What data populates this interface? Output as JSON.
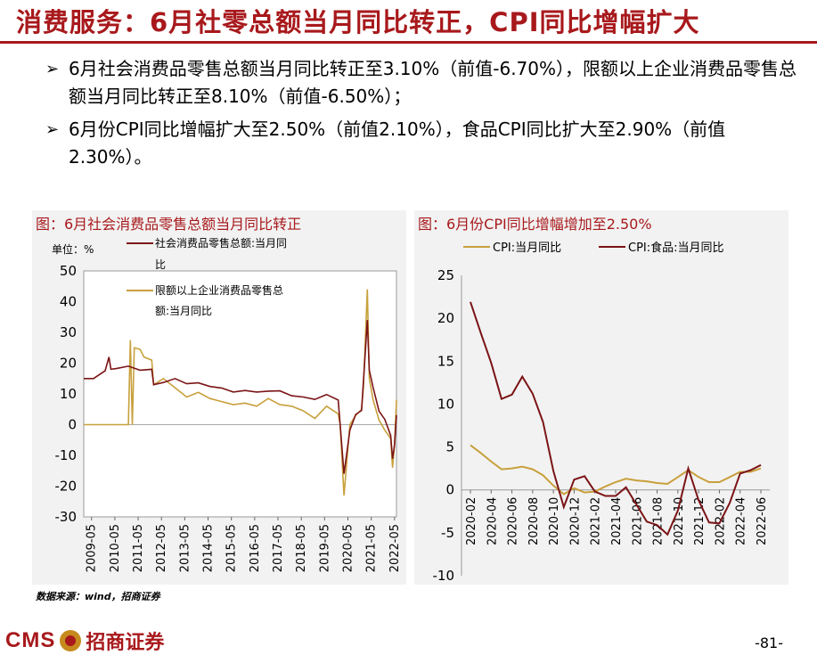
{
  "header": {
    "title": "消费服务：6月社零总额当月同比转正，CPI同比增幅扩大"
  },
  "bullets": [
    "6月社会消费品零售总额当月同比转正至3.10%（前值-6.70%），限额以上企业消费品零售总额当月同比转正至8.10%（前值-6.50%）；",
    "6月份CPI同比增幅扩大至2.50%（前值2.10%），食品CPI同比扩大至2.90%（前值2.30%）。"
  ],
  "footer": {
    "source": "数据来源：wind，招商证券",
    "logo_text": "CMS",
    "logo_cn": "招商证券",
    "page": "-81-"
  },
  "colors": {
    "brand_red": "#a8191c",
    "series_dark": "#7b1416",
    "series_gold": "#c8a03c"
  },
  "chart_data": [
    {
      "type": "line",
      "title": "图：6月社会消费品零售总额当月同比转正",
      "unit_label": "单位：%",
      "ylim": [
        -30,
        50
      ],
      "yticks": [
        50,
        40,
        30,
        20,
        10,
        0,
        -10,
        -20,
        -30
      ],
      "x_range": [
        "2009-01",
        "2022-06"
      ],
      "xtick_labels": [
        "2009-05",
        "2010-05",
        "2011-05",
        "2012-05",
        "2013-05",
        "2014-05",
        "2015-05",
        "2016-05",
        "2017-05",
        "2018-05",
        "2019-05",
        "2020-05",
        "2021-05",
        "2022-05"
      ],
      "legend": "top-left",
      "series": [
        {
          "name": "社会消费品零售总额:当月同比",
          "color": "#7b1416",
          "x": [
            "2009-01",
            "2009-06",
            "2009-12",
            "2010-02",
            "2010-03",
            "2010-06",
            "2010-12",
            "2011-06",
            "2011-12",
            "2012-01",
            "2012-06",
            "2012-12",
            "2013-06",
            "2013-12",
            "2014-06",
            "2014-12",
            "2015-06",
            "2015-12",
            "2016-06",
            "2016-12",
            "2017-06",
            "2017-12",
            "2018-06",
            "2018-12",
            "2019-06",
            "2019-12",
            "2020-01",
            "2020-03",
            "2020-06",
            "2020-09",
            "2020-12",
            "2021-01",
            "2021-03",
            "2021-04",
            "2021-06",
            "2021-09",
            "2021-12",
            "2022-03",
            "2022-04",
            "2022-05",
            "2022-06"
          ],
          "y": [
            15,
            15,
            17.5,
            22,
            18,
            18.3,
            19,
            17.7,
            18,
            13,
            13.7,
            15,
            13.3,
            13.6,
            12.4,
            11.9,
            10.6,
            11.1,
            10.6,
            10.9,
            11,
            9.4,
            9,
            8.2,
            9.8,
            8,
            0,
            -16,
            -1.8,
            3.3,
            4.6,
            14,
            34,
            17.7,
            12.1,
            4.4,
            1.7,
            -3.5,
            -11.1,
            -6.7,
            3.1
          ]
        },
        {
          "name": "限额以上企业消费品零售总额:当月同比",
          "color": "#c8a03c",
          "x": [
            "2009-01",
            "2010-12",
            "2011-01",
            "2011-02",
            "2011-03",
            "2011-06",
            "2011-08",
            "2011-12",
            "2012-01",
            "2012-06",
            "2012-12",
            "2013-06",
            "2013-12",
            "2014-06",
            "2014-12",
            "2015-06",
            "2015-12",
            "2016-06",
            "2016-12",
            "2017-06",
            "2017-12",
            "2018-06",
            "2018-12",
            "2019-06",
            "2019-12",
            "2020-01",
            "2020-03",
            "2020-06",
            "2020-09",
            "2020-12",
            "2021-01",
            "2021-03",
            "2021-04",
            "2021-06",
            "2021-09",
            "2021-12",
            "2022-03",
            "2022-04",
            "2022-05",
            "2022-06"
          ],
          "y": [
            0,
            0,
            27.5,
            0,
            25,
            24.5,
            22,
            21,
            13,
            15,
            12,
            9,
            10.5,
            8.5,
            7.5,
            6.5,
            7,
            6,
            8.5,
            6.5,
            6,
            4.5,
            2,
            6,
            3.5,
            0,
            -23,
            0,
            3,
            5,
            12,
            44,
            15,
            8,
            1.5,
            -1.8,
            -4.5,
            -14,
            -6.5,
            8.1
          ]
        }
      ]
    },
    {
      "type": "line",
      "title": "图：6月份CPI同比增幅增加至2.50%",
      "ylim": [
        -10,
        25
      ],
      "yticks": [
        25,
        20,
        15,
        10,
        5,
        0,
        -5,
        -10
      ],
      "xtick_labels": [
        "2020-02",
        "2020-04",
        "2020-06",
        "2020-08",
        "2020-10",
        "2020-12",
        "2021-02",
        "2021-04",
        "2021-06",
        "2021-08",
        "2021-10",
        "2021-12",
        "2022-02",
        "2022-04",
        "2022-06"
      ],
      "legend": "top",
      "categories": [
        "2020-02",
        "2020-03",
        "2020-04",
        "2020-05",
        "2020-06",
        "2020-07",
        "2020-08",
        "2020-09",
        "2020-10",
        "2020-11",
        "2020-12",
        "2021-01",
        "2021-02",
        "2021-03",
        "2021-04",
        "2021-05",
        "2021-06",
        "2021-07",
        "2021-08",
        "2021-09",
        "2021-10",
        "2021-11",
        "2021-12",
        "2022-01",
        "2022-02",
        "2022-03",
        "2022-04",
        "2022-05",
        "2022-06"
      ],
      "series": [
        {
          "name": "CPI:当月同比",
          "color": "#c8a03c",
          "values": [
            5.2,
            4.3,
            3.3,
            2.4,
            2.5,
            2.7,
            2.4,
            1.7,
            0.5,
            -0.5,
            0.2,
            -0.3,
            -0.2,
            0.4,
            0.9,
            1.3,
            1.1,
            1.0,
            0.8,
            0.7,
            1.5,
            2.3,
            1.5,
            0.9,
            0.9,
            1.5,
            2.1,
            2.1,
            2.5
          ]
        },
        {
          "name": "CPI:食品:当月同比",
          "color": "#7b1416",
          "values": [
            21.9,
            18.3,
            14.8,
            10.6,
            11.1,
            13.2,
            11.2,
            7.9,
            2.2,
            -2.0,
            1.2,
            1.6,
            -0.2,
            -0.7,
            -0.7,
            0.3,
            -1.7,
            -3.7,
            -4.1,
            -5.2,
            -2.4,
            2.5,
            -1.2,
            -3.8,
            -3.9,
            -1.5,
            1.9,
            2.3,
            2.9
          ]
        }
      ]
    }
  ]
}
